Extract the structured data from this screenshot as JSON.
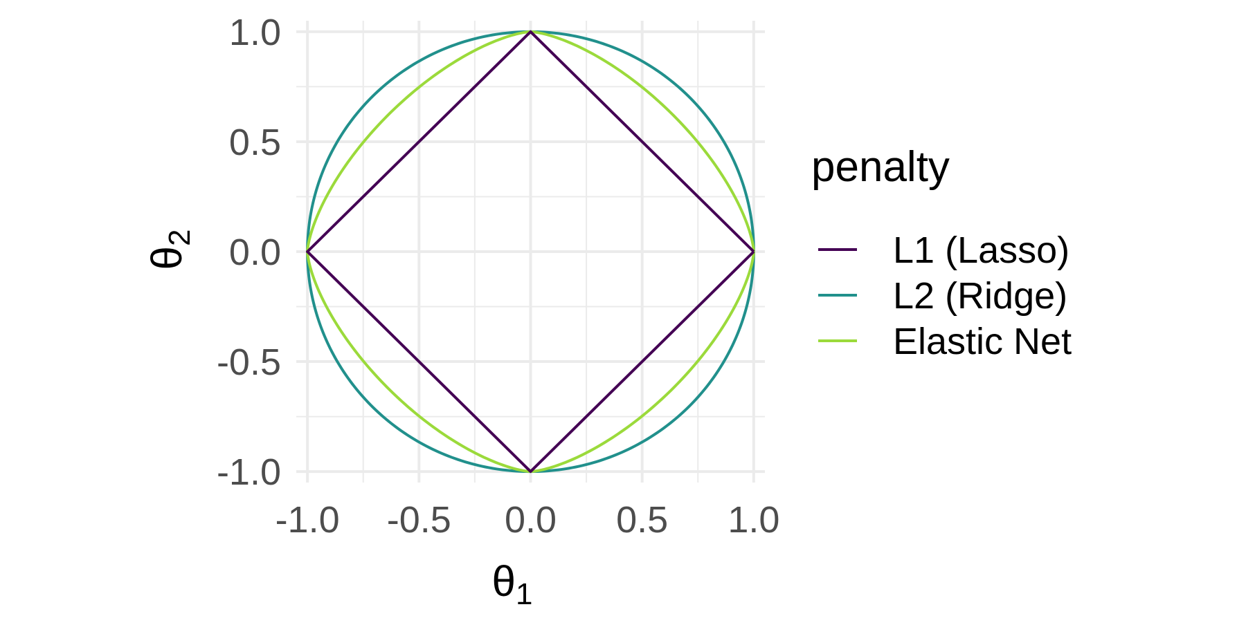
{
  "chart_data": {
    "type": "line",
    "title": "",
    "xlabel": "θ",
    "xlabel_subscript": "1",
    "ylabel": "θ",
    "ylabel_subscript": "2",
    "xlim": [
      -1.05,
      1.05
    ],
    "ylim": [
      -1.05,
      1.05
    ],
    "x_ticks": [
      -1.0,
      -0.5,
      0.0,
      0.5,
      1.0
    ],
    "x_tick_labels": [
      "-1.0",
      "-0.5",
      "0.0",
      "0.5",
      "1.0"
    ],
    "y_ticks": [
      -1.0,
      -0.5,
      0.0,
      0.5,
      1.0
    ],
    "y_tick_labels": [
      "-1.0",
      "-0.5",
      "0.0",
      "0.5",
      "1.0"
    ],
    "grid": true,
    "legend": {
      "title": "penalty",
      "position": "right"
    },
    "series": [
      {
        "name": "L1 (Lasso)",
        "color": "#440154",
        "x": [
          1.0,
          0.0,
          -1.0,
          0.0,
          1.0
        ],
        "y": [
          0.0,
          1.0,
          0.0,
          -1.0,
          0.0
        ]
      },
      {
        "name": "L2 (Ridge)",
        "color": "#21908C",
        "x": [
          1.0,
          0.924,
          0.707,
          0.383,
          0.0,
          -0.383,
          -0.707,
          -0.924,
          -1.0,
          -0.924,
          -0.707,
          -0.383,
          0.0,
          0.383,
          0.707,
          0.924,
          1.0
        ],
        "y": [
          0.0,
          0.383,
          0.707,
          0.924,
          1.0,
          0.924,
          0.707,
          0.383,
          0.0,
          -0.383,
          -0.707,
          -0.924,
          -1.0,
          -0.924,
          -0.707,
          -0.383,
          0.0
        ]
      },
      {
        "name": "Elastic Net",
        "color": "#9BDA3B",
        "x": [
          1.0,
          0.8,
          0.586,
          0.32,
          0.0,
          -0.32,
          -0.586,
          -0.8,
          -1.0,
          -0.8,
          -0.586,
          -0.32,
          0.0,
          0.32,
          0.586,
          0.8,
          1.0
        ],
        "y": [
          0.0,
          0.32,
          0.586,
          0.8,
          1.0,
          0.8,
          0.586,
          0.32,
          0.0,
          -0.32,
          -0.586,
          -0.8,
          -1.0,
          -0.8,
          -0.586,
          -0.32,
          0.0
        ]
      }
    ]
  }
}
